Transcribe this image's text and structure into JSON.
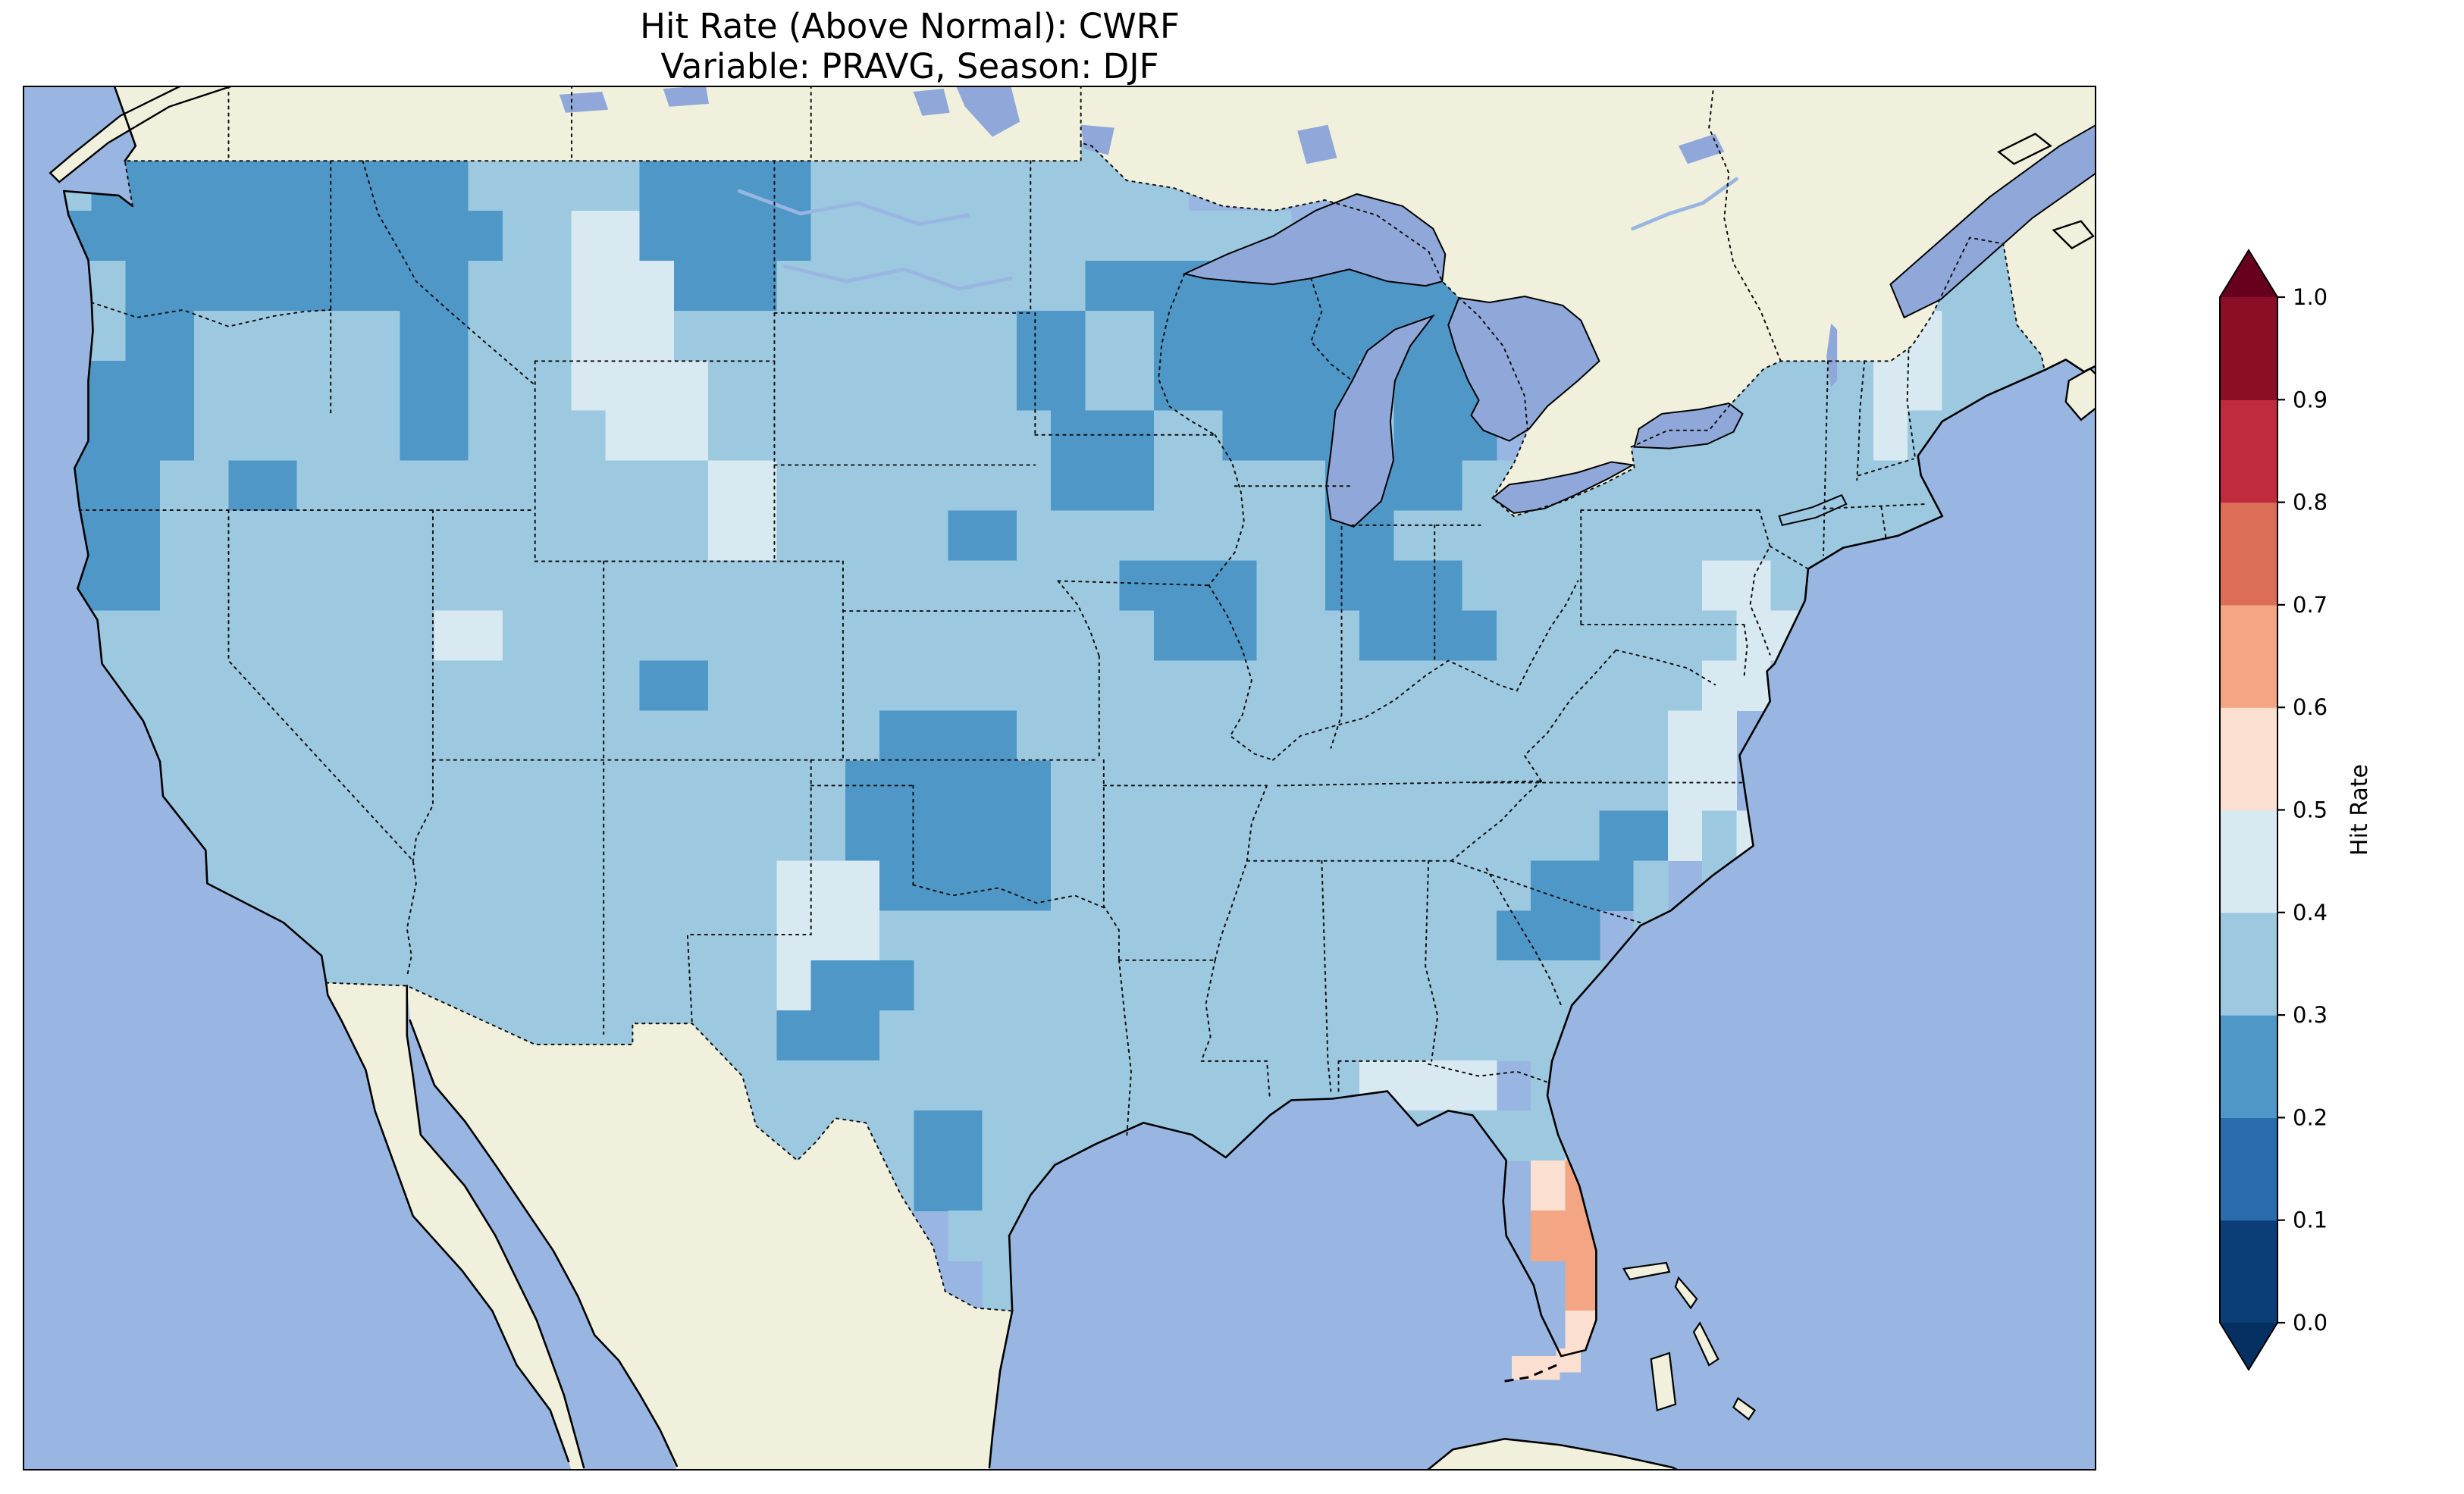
{
  "title": {
    "line1": "Hit Rate (Above Normal): CWRF",
    "line2": "Variable: PRAVG, Season: DJF"
  },
  "colorbar": {
    "label": "Hit Rate",
    "ticks_bottom_to_top": [
      "0.0",
      "0.1",
      "0.2",
      "0.3",
      "0.4",
      "0.5",
      "0.6",
      "0.7",
      "0.8",
      "0.9",
      "1.0"
    ],
    "band_colors_bottom_to_top": [
      "#0b3d77",
      "#2a6cad",
      "#4e97c7",
      "#9cc8e0",
      "#d9e9f2",
      "#fbdfd0",
      "#f4a583",
      "#dc6e58",
      "#c02c3d",
      "#8a0e26"
    ],
    "extend_low_color": "#053061",
    "extend_high_color": "#67001f"
  },
  "map": {
    "ocean_color": "#98b6e1",
    "land_color": "#f0f0dc",
    "lake_color": "#8fa8d9",
    "bin_colors": {
      "2": "#4e97c7",
      "3": "#9cc8e0",
      "4": "#d9e9f2",
      "5": "#fbdfd0",
      "6": "#f4a583"
    }
  },
  "chart_data": {
    "type": "heatmap",
    "title": "Hit Rate (Above Normal): CWRF",
    "subtitle": "Variable: PRAVG, Season: DJF",
    "metric": "Hit Rate (Above Normal)",
    "model": "CWRF",
    "variable": "PRAVG",
    "season": "DJF",
    "colorbar_label": "Hit Rate",
    "value_range": [
      0.0,
      1.0
    ],
    "colormap": "diverging blue-white-red, discrete 0.1 bins, extended both ends",
    "grid": {
      "lon_start": -125,
      "lon_step": 1,
      "ncols": 59,
      "lat_start": 50,
      "lat_step": -1,
      "nrows": 26,
      "bin_midpoint_by_code": {
        "2": 0.25,
        "3": 0.35,
        "4": 0.45,
        "5": 0.55,
        "6": 0.65,
        ".": null
      },
      "rows": [
        "333333333333333333333333333333333..........................",
        "322222222222333332222233333333333..........................",
        "222222222222233442222233333333333333..................33333",
        "332222222222333444222333333333222222222222............33333",
        "332233333322333444333333333322332222222222......33333443333",
        "222233333322333444433333333322332222223222......33333443333",
        "222233333322333344433333333332223322223222....33333334333..",
        "22233223333333333334433333333222333332222333333333333333...",
        "2223333333333333333443333322333333333223333333333333333....",
        "22233333333333333333333333333332222332222333333344333.....",
        "3333333333344333333333333333333322233322223333333443.......",
        "333333333333333332233333333333333333333333333333443........",
        "3333333333333333333333332222333333333333333333344..........",
        "3333333333333333333333322222233333333333333333344..........",
        "333333333333333333333332222223333333333333333224344........",
        "33333333333333333333344422222333333333333332223 3...........",
        "333333333333333333333444333333333333333333222 33............",
        "3333333333333333333334222333333333333333333333.............",
        "......333333333333333222333333333333333333333..............",
        "..............3333333333333333333333334444 3333.............",
        "..................333333322333333333333333334554.............",
        "........................32233 33...........5665.............",
        "..........................333..............665.............",
        "...........................33...............65.............",
        "............................................55.............",
        "...........................................55.............."
      ]
    },
    "extra_cells": [
      {
        "lon": -82.2,
        "lat": 24.85,
        "code": "5"
      },
      {
        "lon": -81.5,
        "lat": 24.85,
        "code": "5"
      },
      {
        "lon": -80.9,
        "lat": 25.0,
        "code": "5"
      }
    ],
    "regional_summary": [
      {
        "region": "most of CONUS",
        "hit_rate": "0.3-0.4"
      },
      {
        "region": "Pacific Northwest (WA/ID/W MT)",
        "hit_rate": "0.2-0.3"
      },
      {
        "region": "Wisconsin / Upper Midwest / Great Lakes",
        "hit_rate": "0.2-0.3"
      },
      {
        "region": "Oklahoma / S Kansas",
        "hit_rate": "0.2-0.3"
      },
      {
        "region": "central Montana, SE Wyoming, W Texas, Chesapeake area",
        "hit_rate": "0.4-0.5"
      },
      {
        "region": "central Florida peninsula",
        "hit_rate": "0.6-0.7 (only above-0.5 area)"
      }
    ]
  }
}
